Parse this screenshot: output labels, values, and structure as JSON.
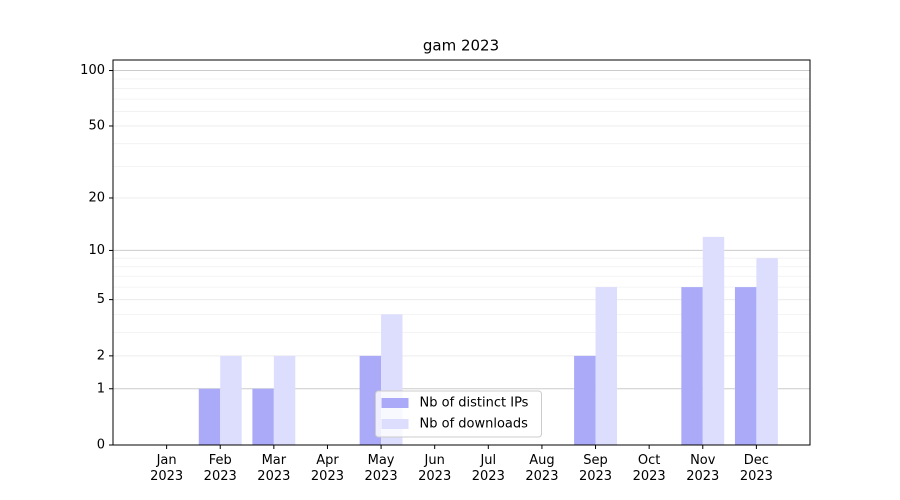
{
  "chart_data": {
    "type": "bar",
    "title": "gam 2023",
    "categories": [
      "Jan 2023",
      "Feb 2023",
      "Mar 2023",
      "Apr 2023",
      "May 2023",
      "Jun 2023",
      "Jul 2023",
      "Aug 2023",
      "Sep 2023",
      "Oct 2023",
      "Nov 2023",
      "Dec 2023"
    ],
    "series": [
      {
        "name": "Nb of distinct IPs",
        "color": "#aaaaf8",
        "values": [
          0,
          1,
          1,
          0,
          2,
          0,
          0,
          0,
          2,
          0,
          6,
          6
        ]
      },
      {
        "name": "Nb of downloads",
        "color": "#ddddfd",
        "values": [
          0,
          2,
          2,
          0,
          4,
          0,
          0,
          0,
          6,
          0,
          12,
          9
        ]
      }
    ],
    "yscale": "log1p",
    "ylim": [
      0,
      114
    ],
    "yticks": [
      0,
      1,
      2,
      5,
      10,
      20,
      50,
      100
    ],
    "yminorticks": [
      3,
      4,
      6,
      7,
      8,
      9,
      30,
      40,
      60,
      70,
      80,
      90
    ],
    "grid": true,
    "legend": "lower center"
  }
}
